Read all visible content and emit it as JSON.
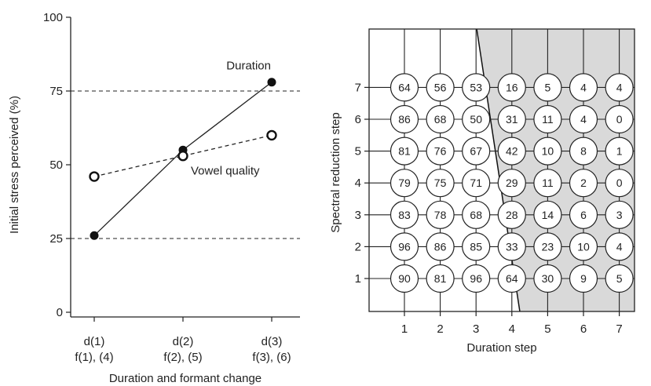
{
  "chart_data": [
    {
      "type": "line",
      "xlabel": "Duration and formant change",
      "ylabel": "Initial stress perceived (%)",
      "categories": [
        [
          "d(1)",
          "f(1), (4)"
        ],
        [
          "d(2)",
          "f(2), (5)"
        ],
        [
          "d(3)",
          "f(3), (6)"
        ]
      ],
      "ylim": [
        0,
        100
      ],
      "yticks": [
        0,
        25,
        50,
        75,
        100
      ],
      "reference_lines": [
        25,
        75
      ],
      "series": [
        {
          "name": "Duration",
          "values": [
            26,
            55,
            78
          ],
          "marker": "filled",
          "line": "solid"
        },
        {
          "name": "Vowel quality",
          "values": [
            46,
            53,
            60
          ],
          "marker": "open",
          "line": "dashed"
        }
      ],
      "grid": false
    },
    {
      "type": "table",
      "xlabel": "Duration step",
      "ylabel": "Spectral reduction step",
      "x": [
        1,
        2,
        3,
        4,
        5,
        6,
        7
      ],
      "y": [
        1,
        2,
        3,
        4,
        5,
        6,
        7
      ],
      "rows": [
        {
          "y": 7,
          "values": [
            64,
            56,
            53,
            16,
            5,
            4,
            4
          ]
        },
        {
          "y": 6,
          "values": [
            86,
            68,
            50,
            31,
            11,
            4,
            0
          ]
        },
        {
          "y": 5,
          "values": [
            81,
            76,
            67,
            42,
            10,
            8,
            1
          ]
        },
        {
          "y": 4,
          "values": [
            79,
            75,
            71,
            29,
            11,
            2,
            0
          ]
        },
        {
          "y": 3,
          "values": [
            83,
            78,
            68,
            28,
            14,
            6,
            3
          ]
        },
        {
          "y": 2,
          "values": [
            96,
            86,
            85,
            33,
            23,
            10,
            4
          ]
        },
        {
          "y": 1,
          "values": [
            90,
            81,
            96,
            64,
            30,
            9,
            5
          ]
        }
      ],
      "boundary": [
        [
          3.2,
          7.5
        ],
        [
          4.15,
          0.5
        ]
      ],
      "shaded_side": "right",
      "shade_color": "#d9d9d9"
    }
  ]
}
